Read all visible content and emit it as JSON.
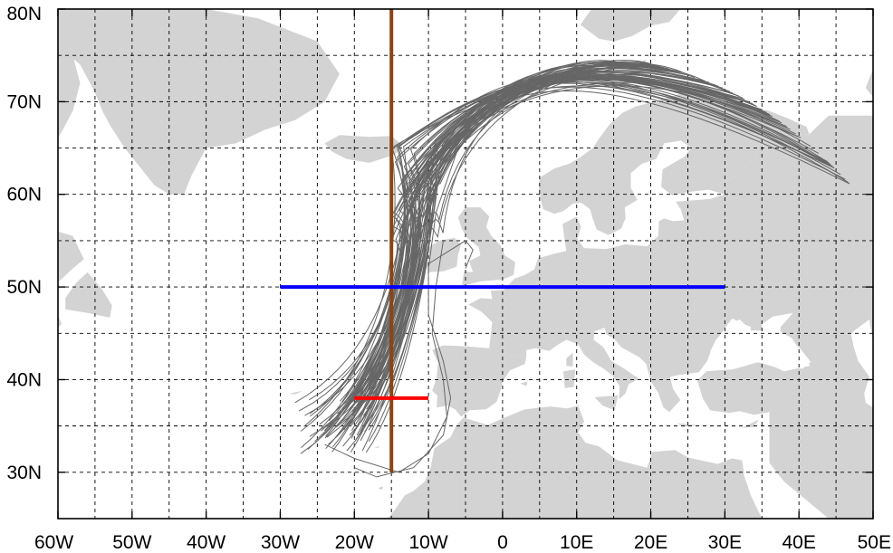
{
  "map": {
    "lon_range": [
      -60,
      50
    ],
    "lat_range": [
      25,
      80
    ],
    "lon_ticks": [
      {
        "value": -60,
        "label": "60W"
      },
      {
        "value": -50,
        "label": "50W"
      },
      {
        "value": -40,
        "label": "40W"
      },
      {
        "value": -30,
        "label": "30W"
      },
      {
        "value": -20,
        "label": "20W"
      },
      {
        "value": -10,
        "label": "10W"
      },
      {
        "value": 0,
        "label": "0"
      },
      {
        "value": 10,
        "label": "10E"
      },
      {
        "value": 20,
        "label": "20E"
      },
      {
        "value": 30,
        "label": "30E"
      },
      {
        "value": 40,
        "label": "40E"
      },
      {
        "value": 50,
        "label": "50E"
      }
    ],
    "lat_ticks": [
      {
        "value": 30,
        "label": "30N"
      },
      {
        "value": 40,
        "label": "40N"
      },
      {
        "value": 50,
        "label": "50N"
      },
      {
        "value": 60,
        "label": "60N"
      },
      {
        "value": 70,
        "label": "70N"
      },
      {
        "value": 80,
        "label": "80N"
      }
    ],
    "grid_step_deg": 5,
    "colors": {
      "land": "#d3d3d3",
      "trajectory": "#666666",
      "meridian_line": "#8b4513",
      "parallel_line": "#0000ff",
      "source_segment": "#ff0000",
      "grid": "#000000"
    },
    "reference_lines": [
      {
        "name": "meridian-15w",
        "from": [
          -15,
          30
        ],
        "to": [
          -15,
          80
        ]
      },
      {
        "name": "parallel-50n",
        "from": [
          -30,
          50
        ],
        "to": [
          30,
          50
        ]
      },
      {
        "name": "source-segment-38n",
        "from": [
          -20,
          38
        ],
        "to": [
          -10,
          38
        ]
      }
    ],
    "trajectory_bundle": {
      "count": 70,
      "start": {
        "lon_min": -28,
        "lon_max": -18,
        "lat_min": 32,
        "lat_max": 38
      },
      "mid": {
        "lon_min": -15,
        "lon_max": -8,
        "lat_min": 55,
        "lat_max": 66
      },
      "end": {
        "lon_min": 17,
        "lon_max": 47,
        "lat_min": 61,
        "lat_max": 76
      }
    }
  }
}
